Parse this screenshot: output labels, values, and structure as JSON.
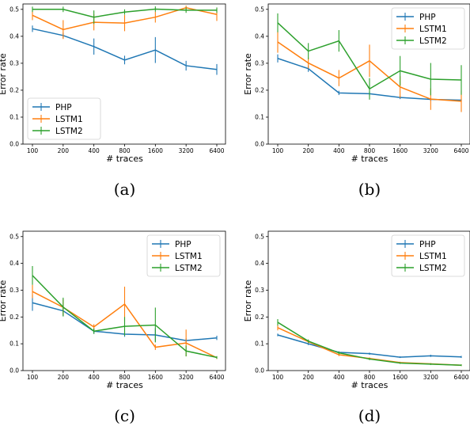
{
  "colors": {
    "php": "#1f77b4",
    "lstm1": "#ff7f0e",
    "lstm2": "#2ca02c"
  },
  "chart_data": [
    {
      "type": "line",
      "caption": "(a)",
      "xlabel": "# traces",
      "ylabel": "Error rate",
      "categories": [
        "100",
        "200",
        "400",
        "800",
        "1600",
        "3200",
        "6400"
      ],
      "ylim": [
        0,
        0.52
      ],
      "yticks": [
        "0.0",
        "0.1",
        "0.2",
        "0.3",
        "0.4",
        "0.5"
      ],
      "legend": "lower-left",
      "series": [
        {
          "name": "PHP",
          "values": [
            0.428,
            0.403,
            0.362,
            0.312,
            0.349,
            0.291,
            0.277
          ],
          "err": [
            0.012,
            0.01,
            0.03,
            0.016,
            0.048,
            0.018,
            0.02
          ]
        },
        {
          "name": "LSTM1",
          "values": [
            0.478,
            0.425,
            0.452,
            0.449,
            0.471,
            0.506,
            0.481
          ],
          "err": [
            0.018,
            0.035,
            0.03,
            0.03,
            0.02,
            0.008,
            0.024
          ]
        },
        {
          "name": "LSTM2",
          "values": [
            0.5,
            0.5,
            0.471,
            0.49,
            0.501,
            0.497,
            0.497
          ],
          "err": [
            0.01,
            0.01,
            0.025,
            0.01,
            0.01,
            0.01,
            0.01
          ]
        }
      ]
    },
    {
      "type": "line",
      "caption": "(b)",
      "xlabel": "# traces",
      "ylabel": "Error rate",
      "categories": [
        "100",
        "200",
        "400",
        "800",
        "1600",
        "3200",
        "6400"
      ],
      "ylim": [
        0,
        0.52
      ],
      "yticks": [
        "0.0",
        "0.1",
        "0.2",
        "0.3",
        "0.4",
        "0.5"
      ],
      "legend": "upper-right",
      "series": [
        {
          "name": "PHP",
          "values": [
            0.318,
            0.28,
            0.19,
            0.187,
            0.173,
            0.166,
            0.163
          ],
          "err": [
            0.015,
            0.012,
            0.008,
            0.008,
            0.006,
            0.005,
            0.005
          ]
        },
        {
          "name": "LSTM1",
          "values": [
            0.379,
            0.301,
            0.245,
            0.309,
            0.212,
            0.167,
            0.159
          ],
          "err": [
            0.04,
            0.02,
            0.03,
            0.06,
            0.04,
            0.04,
            0.04
          ]
        },
        {
          "name": "LSTM2",
          "values": [
            0.45,
            0.345,
            0.383,
            0.205,
            0.272,
            0.241,
            0.238
          ],
          "err": [
            0.035,
            0.03,
            0.04,
            0.04,
            0.055,
            0.06,
            0.055
          ]
        }
      ]
    },
    {
      "type": "line",
      "caption": "(c)",
      "xlabel": "# traces",
      "ylabel": "Error rate",
      "categories": [
        "100",
        "200",
        "400",
        "800",
        "1600",
        "3200",
        "6400"
      ],
      "ylim": [
        0,
        0.52
      ],
      "yticks": [
        "0.0",
        "0.1",
        "0.2",
        "0.3",
        "0.4",
        "0.5"
      ],
      "legend": "upper-right",
      "series": [
        {
          "name": "PHP",
          "values": [
            0.253,
            0.223,
            0.147,
            0.136,
            0.133,
            0.112,
            0.122
          ],
          "err": [
            0.03,
            0.02,
            0.01,
            0.01,
            0.025,
            0.008,
            0.008
          ]
        },
        {
          "name": "LSTM1",
          "values": [
            0.295,
            0.236,
            0.163,
            0.248,
            0.087,
            0.103,
            0.048
          ],
          "err": [
            0.025,
            0.03,
            0.01,
            0.065,
            0.01,
            0.05,
            0.005
          ]
        },
        {
          "name": "LSTM2",
          "values": [
            0.355,
            0.237,
            0.147,
            0.165,
            0.17,
            0.073,
            0.049
          ],
          "err": [
            0.035,
            0.035,
            0.01,
            0.035,
            0.065,
            0.02,
            0.005
          ]
        }
      ]
    },
    {
      "type": "line",
      "caption": "(d)",
      "xlabel": "# traces",
      "ylabel": "Error rate",
      "categories": [
        "100",
        "200",
        "400",
        "800",
        "1600",
        "3200",
        "6400"
      ],
      "ylim": [
        0,
        0.52
      ],
      "yticks": [
        "0.0",
        "0.1",
        "0.2",
        "0.3",
        "0.4",
        "0.5"
      ],
      "legend": "upper-right",
      "series": [
        {
          "name": "PHP",
          "values": [
            0.133,
            0.1,
            0.068,
            0.063,
            0.05,
            0.055,
            0.051
          ],
          "err": [
            0.005,
            0.005,
            0.004,
            0.004,
            0.003,
            0.004,
            0.004
          ]
        },
        {
          "name": "LSTM1",
          "values": [
            0.16,
            0.108,
            0.059,
            0.045,
            0.03,
            0.025,
            0.02
          ],
          "err": [
            0.01,
            0.006,
            0.005,
            0.004,
            0.003,
            0.003,
            0.003
          ]
        },
        {
          "name": "LSTM2",
          "values": [
            0.18,
            0.11,
            0.066,
            0.043,
            0.028,
            0.024,
            0.02
          ],
          "err": [
            0.012,
            0.006,
            0.005,
            0.004,
            0.003,
            0.003,
            0.003
          ]
        }
      ]
    }
  ]
}
